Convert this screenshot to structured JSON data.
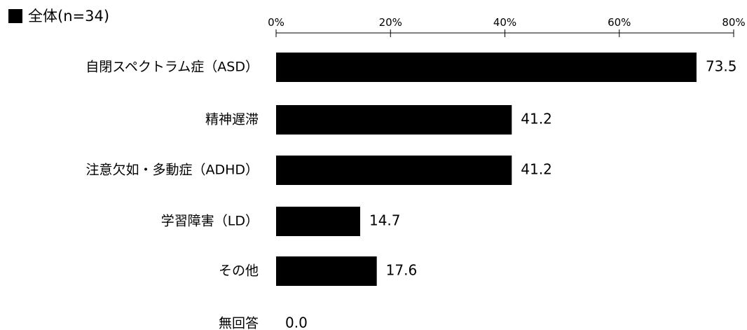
{
  "chart_data": {
    "type": "bar",
    "orientation": "horizontal",
    "categories": [
      "自閉スペクトラム症（ASD）",
      "精神遅滞",
      "注意欠如・多動症（ADHD）",
      "学習障害（LD）",
      "その他",
      "無回答"
    ],
    "series": [
      {
        "name": "全体(n=34)",
        "values": [
          73.5,
          41.2,
          41.2,
          14.7,
          17.6,
          0.0
        ],
        "color": "#000000"
      }
    ],
    "data_labels": [
      "73.5",
      "41.2",
      "41.2",
      "14.7",
      "17.6",
      "0.0"
    ],
    "xlim": [
      0,
      80
    ],
    "x_ticks": [
      0,
      20,
      40,
      60,
      80
    ],
    "x_tick_labels": [
      "0%",
      "20%",
      "40%",
      "60%",
      "80%"
    ],
    "axis_position": "top",
    "legend_position": "top-left",
    "grid": false
  }
}
